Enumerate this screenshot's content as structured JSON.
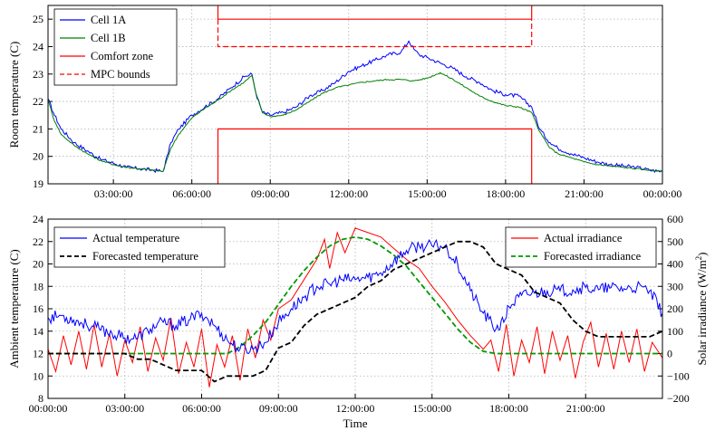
{
  "chart_data": [
    {
      "type": "line",
      "ylabel": "Room temperature (C)",
      "xlim": [
        0.5,
        24
      ],
      "ylim": [
        19,
        25.5
      ],
      "yticks": [
        19,
        20,
        21,
        22,
        23,
        24,
        25
      ],
      "xticks": [
        3,
        6,
        9,
        12,
        15,
        18,
        21,
        24
      ],
      "xtick_labels": [
        "03:00:00",
        "06:00:00",
        "09:00:00",
        "12:00:00",
        "15:00:00",
        "18:00:00",
        "21:00:00",
        "00:00:00"
      ],
      "grid": true,
      "legend_position": "top-left",
      "series": [
        {
          "name": "Cell 1A",
          "color": "#0000ff",
          "style": "solid",
          "x": [
            0.5,
            0.7,
            1,
            1.5,
            2,
            2.5,
            3,
            3.5,
            4,
            4.5,
            4.9,
            5.2,
            5.5,
            6,
            6.5,
            7,
            7.5,
            8,
            8.3,
            8.45,
            8.7,
            9,
            9.5,
            10,
            10.5,
            11,
            11.5,
            12,
            12.5,
            13,
            13.5,
            14,
            14.3,
            14.5,
            14.7,
            15,
            15.5,
            16,
            16.5,
            17,
            17.5,
            18,
            18.5,
            19,
            19.3,
            19.7,
            20,
            20.5,
            21,
            21.5,
            22,
            22.5,
            23,
            23.5,
            24
          ],
          "y": [
            22.1,
            21.6,
            21,
            20.5,
            20.2,
            19.9,
            19.75,
            19.6,
            19.55,
            19.5,
            19.45,
            20.5,
            21,
            21.5,
            21.8,
            22.1,
            22.5,
            22.9,
            23,
            22.3,
            21.6,
            21.5,
            21.6,
            21.8,
            22.2,
            22.4,
            22.7,
            23.1,
            23.3,
            23.5,
            23.7,
            23.8,
            24.2,
            23.9,
            23.7,
            23.6,
            23.4,
            23.2,
            22.9,
            22.7,
            22.4,
            22.25,
            22.2,
            21.8,
            21,
            20.5,
            20.3,
            20.1,
            19.95,
            19.8,
            19.7,
            19.65,
            19.6,
            19.5,
            19.45
          ]
        },
        {
          "name": "Cell 1B",
          "color": "#008000",
          "style": "solid",
          "x": [
            0.5,
            0.7,
            1,
            1.5,
            2,
            2.5,
            3,
            3.5,
            4,
            4.5,
            4.9,
            5.2,
            5.5,
            6,
            6.5,
            7,
            7.5,
            8,
            8.3,
            8.45,
            8.7,
            9,
            9.5,
            10,
            10.5,
            11,
            11.5,
            12,
            12.5,
            13,
            13.5,
            14,
            14.5,
            15,
            15.5,
            16,
            16.5,
            17,
            17.5,
            18,
            18.5,
            19,
            19.3,
            19.7,
            20,
            20.5,
            21,
            21.5,
            22,
            22.5,
            23,
            23.5,
            24
          ],
          "y": [
            22.1,
            21.4,
            20.8,
            20.4,
            20.1,
            19.85,
            19.7,
            19.6,
            19.55,
            19.5,
            19.45,
            20.3,
            20.8,
            21.4,
            21.75,
            22.05,
            22.4,
            22.7,
            22.95,
            22.3,
            21.6,
            21.45,
            21.5,
            21.7,
            22,
            22.3,
            22.5,
            22.6,
            22.7,
            22.75,
            22.8,
            22.8,
            22.75,
            22.85,
            23.05,
            22.8,
            22.5,
            22.2,
            22,
            21.85,
            21.8,
            21.6,
            20.9,
            20.3,
            20.1,
            19.95,
            19.8,
            19.7,
            19.65,
            19.6,
            19.55,
            19.5,
            19.45
          ]
        },
        {
          "name": "Comfort zone",
          "color": "#ff0000",
          "style": "solid",
          "segments": [
            {
              "x": [
                7,
                7,
                19,
                19
              ],
              "y": [
                19,
                21,
                21,
                19
              ]
            },
            {
              "x": [
                7,
                7,
                19,
                19
              ],
              "y": [
                25.5,
                25,
                25,
                25.5
              ]
            }
          ]
        },
        {
          "name": "MPC bounds",
          "color": "#ff0000",
          "style": "dashed",
          "segments": [
            {
              "x": [
                7,
                7,
                19,
                19
              ],
              "y": [
                25,
                24,
                24,
                25
              ]
            }
          ]
        }
      ]
    },
    {
      "type": "line",
      "xlabel": "Time",
      "ylabel": "Ambient temperature (C)",
      "ylabel_right": "Solar irradiance (W/m",
      "ylabel_right_sup": "2",
      "ylabel_right_end": ")",
      "xlim": [
        0,
        24
      ],
      "ylim": [
        8,
        24
      ],
      "ylim_right": [
        -200,
        600
      ],
      "yticks": [
        8,
        10,
        12,
        14,
        16,
        18,
        20,
        22,
        24
      ],
      "yticks_right": [
        -200,
        -100,
        0,
        100,
        200,
        300,
        400,
        500,
        600
      ],
      "xticks": [
        0,
        3,
        6,
        9,
        12,
        15,
        18,
        21
      ],
      "xtick_labels": [
        "00:00:00",
        "03:00:00",
        "06:00:00",
        "09:00:00",
        "12:00:00",
        "15:00:00",
        "18:00:00",
        "21:00:00"
      ],
      "grid": true,
      "legend_position": "top-left / top-right",
      "series": [
        {
          "name": "Actual temperature",
          "color": "#0000ff",
          "style": "solid",
          "axis": "left",
          "x": [
            0,
            0.5,
            1,
            1.5,
            2,
            2.5,
            3,
            3.5,
            4,
            4.5,
            5,
            5.5,
            6,
            6.5,
            7,
            7.5,
            8,
            8.5,
            9,
            9.5,
            10,
            10.5,
            11,
            11.5,
            12,
            12.5,
            13,
            13.5,
            14,
            14.5,
            15,
            15.5,
            16,
            16.5,
            17,
            17.5,
            17.8,
            18,
            18.5,
            19,
            19.5,
            20,
            20.5,
            21,
            21.5,
            22,
            22.5,
            23,
            23.5,
            24
          ],
          "y": [
            15.2,
            15.4,
            15,
            14.6,
            14.2,
            13.8,
            13.4,
            13.4,
            14.2,
            14.8,
            14.5,
            15,
            15.6,
            14.5,
            13.2,
            12.4,
            12.4,
            13,
            14.8,
            16,
            17,
            18,
            18.2,
            18.6,
            18.6,
            18.8,
            19.2,
            20.2,
            21.2,
            21.6,
            21.6,
            21.6,
            20,
            17.6,
            15.6,
            14.2,
            14.8,
            16.2,
            17.2,
            17.4,
            17.6,
            17.6,
            17.7,
            17.9,
            17.7,
            17.9,
            17.8,
            17.9,
            17.6,
            15.6
          ]
        },
        {
          "name": "Forecasted temperature",
          "color": "#000000",
          "style": "dashed",
          "axis": "left",
          "x": [
            0,
            3,
            3.5,
            4,
            4.5,
            5,
            5.5,
            6,
            6.5,
            7,
            7.5,
            8,
            8.5,
            9,
            9.5,
            10,
            10.5,
            11,
            11.5,
            12,
            12.5,
            13,
            13.5,
            14,
            14.5,
            15,
            15.5,
            16,
            16.5,
            17,
            17.5,
            18,
            18.5,
            19,
            19.5,
            20,
            20.5,
            21,
            21.5,
            22,
            22.5,
            23,
            23.5,
            24
          ],
          "y": [
            12,
            12,
            11.5,
            11.5,
            11,
            10.5,
            10.5,
            10.5,
            9.5,
            10,
            10,
            10,
            10.5,
            12.5,
            13,
            14.5,
            15.5,
            16,
            16.5,
            17,
            18,
            18.5,
            19.5,
            20,
            20.5,
            21,
            21.5,
            22,
            22,
            21.5,
            20,
            19.5,
            19,
            17.5,
            17,
            16.5,
            15,
            14,
            13.5,
            13.5,
            13.5,
            13.5,
            13.5,
            14
          ]
        },
        {
          "name": "Actual irradiance",
          "color": "#ff0000",
          "style": "solid",
          "axis": "right",
          "x": [
            0,
            0.3,
            0.6,
            0.9,
            1.2,
            1.5,
            1.8,
            2.1,
            2.4,
            2.7,
            3,
            3.3,
            3.6,
            3.9,
            4.2,
            4.5,
            4.8,
            5.1,
            5.4,
            5.7,
            6,
            6.3,
            6.6,
            6.9,
            7.2,
            7.5,
            7.8,
            8.1,
            8.4,
            8.7,
            9,
            9.5,
            10,
            10.5,
            10.8,
            11,
            11.3,
            11.6,
            12,
            12.5,
            13,
            13.5,
            14,
            14.5,
            15,
            15.5,
            16,
            16.5,
            17,
            17.3,
            17.6,
            17.9,
            18.2,
            18.5,
            18.8,
            19.1,
            19.4,
            19.7,
            20,
            20.3,
            20.6,
            20.9,
            21.2,
            21.5,
            21.8,
            22.1,
            22.4,
            22.7,
            23,
            23.3,
            23.6,
            24
          ],
          "y": [
            20,
            -80,
            80,
            -50,
            100,
            -70,
            130,
            -60,
            90,
            -100,
            60,
            -40,
            120,
            -80,
            70,
            -30,
            160,
            -90,
            50,
            -60,
            110,
            -150,
            40,
            -60,
            80,
            -120,
            110,
            -20,
            150,
            60,
            200,
            240,
            330,
            420,
            510,
            380,
            540,
            450,
            560,
            540,
            520,
            470,
            420,
            380,
            300,
            230,
            150,
            80,
            20,
            60,
            -80,
            130,
            -100,
            60,
            -40,
            120,
            -90,
            100,
            -30,
            80,
            -110,
            50,
            140,
            -60,
            90,
            -70,
            100,
            -40,
            110,
            -80,
            50,
            -20
          ]
        },
        {
          "name": "Forecasted irradiance",
          "color": "#009900",
          "style": "dashed",
          "axis": "right",
          "x": [
            0,
            7,
            7.5,
            8,
            8.5,
            9,
            9.5,
            10,
            10.5,
            11,
            11.5,
            12,
            12.5,
            13,
            13.5,
            14,
            14.5,
            15,
            15.5,
            16,
            16.5,
            17,
            17.5,
            24
          ],
          "y": [
            0,
            0,
            30,
            80,
            140,
            220,
            300,
            370,
            430,
            480,
            510,
            520,
            510,
            480,
            440,
            390,
            320,
            250,
            180,
            110,
            50,
            10,
            0,
            0
          ]
        }
      ]
    }
  ]
}
